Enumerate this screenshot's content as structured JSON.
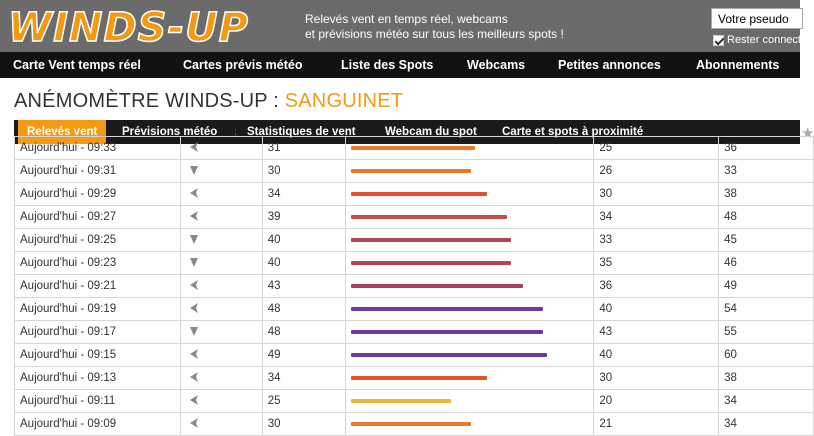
{
  "header": {
    "logo_text": "WINDS-UP",
    "tagline_line1": "Relevés vent en temps réel, webcams",
    "tagline_line2": "et prévisions météo sur tous les meilleurs spots !",
    "pseudo_value": "Votre pseudo",
    "remember_label": "Rester connect"
  },
  "main_nav": [
    "Carte Vent temps réel",
    "Cartes prévis météo",
    "Liste des Spots",
    "Webcams",
    "Petites annonces",
    "Abonnements"
  ],
  "page": {
    "title_prefix": "ANÉMOMÈTRE WINDS-UP : ",
    "spot_name": "SANGUINET"
  },
  "sub_nav": [
    "Relevés vent",
    "Prévisions météo",
    "Statistiques de vent",
    "Webcam du spot",
    "Carte et spots à proximité"
  ],
  "colors": {
    "accent": "#f39a12",
    "header_bg": "#6b6b6b",
    "nav_bg": "#111111"
  },
  "rows": [
    {
      "time": "Aujourd'hui - 09:33",
      "dir": "left",
      "speed": "31",
      "min": "25",
      "max": "36",
      "color": "#e8792a"
    },
    {
      "time": "Aujourd'hui - 09:31",
      "dir": "down",
      "speed": "30",
      "min": "26",
      "max": "33",
      "color": "#e8792a"
    },
    {
      "time": "Aujourd'hui - 09:29",
      "dir": "left",
      "speed": "34",
      "min": "30",
      "max": "38",
      "color": "#e2512a"
    },
    {
      "time": "Aujourd'hui - 09:27",
      "dir": "left",
      "speed": "39",
      "min": "34",
      "max": "48",
      "color": "#c84a45"
    },
    {
      "time": "Aujourd'hui - 09:25",
      "dir": "down",
      "speed": "40",
      "min": "33",
      "max": "45",
      "color": "#b9445a"
    },
    {
      "time": "Aujourd'hui - 09:23",
      "dir": "down",
      "speed": "40",
      "min": "35",
      "max": "46",
      "color": "#b9445a"
    },
    {
      "time": "Aujourd'hui - 09:21",
      "dir": "left",
      "speed": "43",
      "min": "36",
      "max": "49",
      "color": "#a8415f"
    },
    {
      "time": "Aujourd'hui - 09:19",
      "dir": "left",
      "speed": "48",
      "min": "40",
      "max": "54",
      "color": "#6b3aa2"
    },
    {
      "time": "Aujourd'hui - 09:17",
      "dir": "down",
      "speed": "48",
      "min": "43",
      "max": "55",
      "color": "#6b3aa2"
    },
    {
      "time": "Aujourd'hui - 09:15",
      "dir": "left",
      "speed": "49",
      "min": "40",
      "max": "60",
      "color": "#6b3aa2"
    },
    {
      "time": "Aujourd'hui - 09:13",
      "dir": "left",
      "speed": "34",
      "min": "30",
      "max": "38",
      "color": "#e2512a"
    },
    {
      "time": "Aujourd'hui - 09:11",
      "dir": "left",
      "speed": "25",
      "min": "20",
      "max": "34",
      "color": "#e3b83a"
    },
    {
      "time": "Aujourd'hui - 09:09",
      "dir": "left",
      "speed": "30",
      "min": "21",
      "max": "34",
      "color": "#e8792a"
    }
  ]
}
